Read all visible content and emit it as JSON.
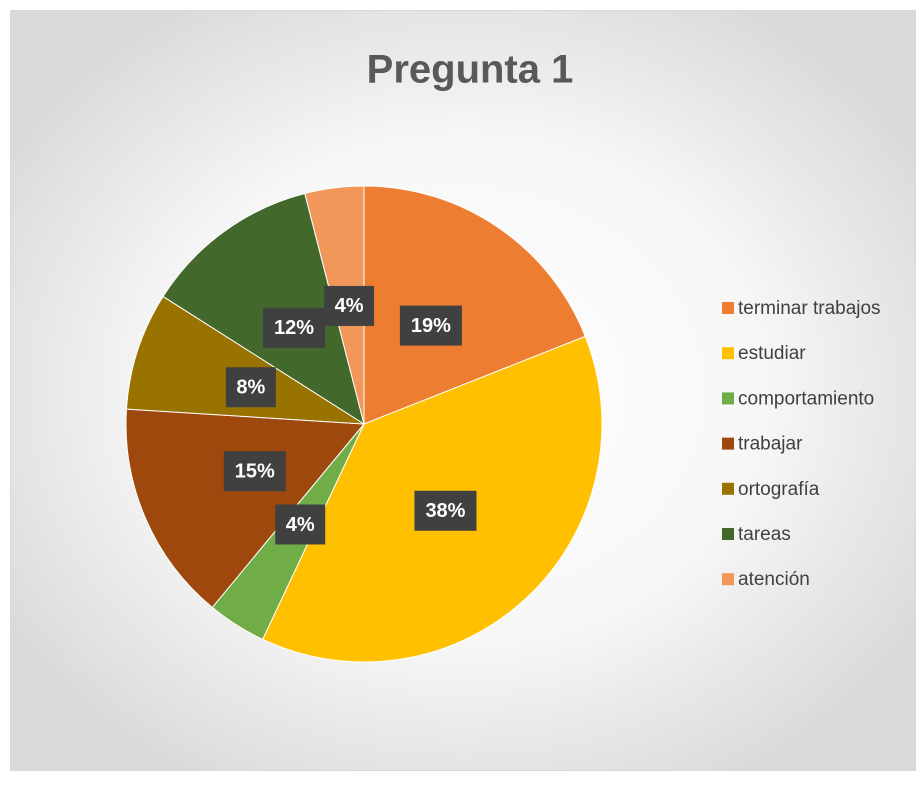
{
  "chart_data": {
    "type": "pie",
    "title": "Pregunta 1",
    "categories": [
      "terminar trabajos",
      "estudiar",
      "comportamiento",
      "trabajar",
      "ortografía",
      "tareas",
      "atención"
    ],
    "values": [
      19,
      38,
      4,
      15,
      8,
      12,
      4
    ],
    "value_labels": [
      "19%",
      "38%",
      "4%",
      "15%",
      "8%",
      "12%",
      "4%"
    ],
    "colors": [
      "#ED7D31",
      "#FFC000",
      "#70AD47",
      "#9E480E",
      "#997300",
      "#43682B",
      "#F1975A"
    ],
    "legend": "right"
  }
}
